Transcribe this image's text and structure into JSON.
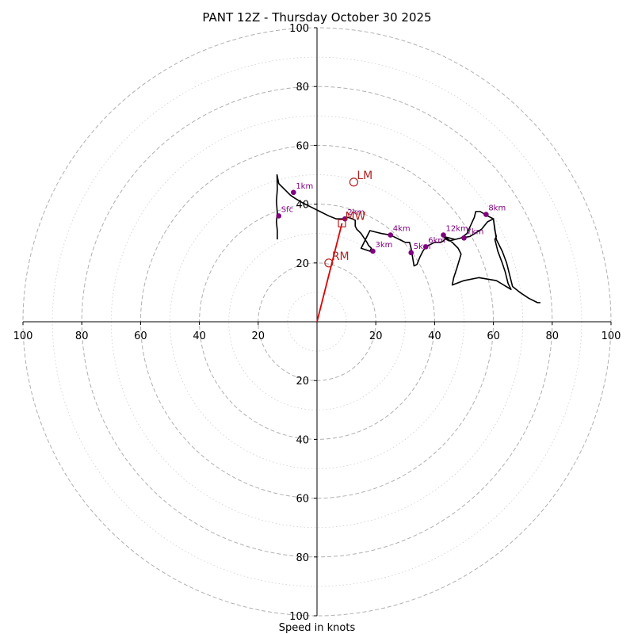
{
  "chart_data": {
    "type": "hodograph",
    "title": "PANT 12Z - Thursday October 30 2025",
    "xlabel": "Speed in knots",
    "axis_range": [
      -100,
      100
    ],
    "ring_values": [
      20,
      40,
      60,
      80,
      100
    ],
    "minor_ring_values": [
      10,
      30,
      50,
      70,
      90
    ],
    "tick_labels": [
      "100",
      "80",
      "60",
      "40",
      "20",
      "20",
      "40",
      "60",
      "80",
      "100"
    ],
    "tick_values": [
      -100,
      -80,
      -60,
      -40,
      -20,
      20,
      40,
      60,
      80,
      100
    ],
    "grid": true,
    "colors": {
      "profile": "#000000",
      "levels": "#800080",
      "storm_motion": "#b22222",
      "mean_wind_vector": "#e00000",
      "grid": "#b0b0b0"
    },
    "profile": [
      [
        -13.5,
        28
      ],
      [
        -13.5,
        31
      ],
      [
        -13.8,
        34
      ],
      [
        -13.5,
        37
      ],
      [
        -13.8,
        41
      ],
      [
        -13.5,
        45
      ],
      [
        -13.6,
        50
      ],
      [
        -13,
        47
      ],
      [
        -11,
        45
      ],
      [
        -9,
        43
      ],
      [
        -7.5,
        42
      ],
      [
        -5,
        40.5
      ],
      [
        -2,
        39
      ],
      [
        1,
        37.5
      ],
      [
        4,
        36
      ],
      [
        6.5,
        35
      ],
      [
        9,
        35
      ],
      [
        10.5,
        35.5
      ],
      [
        12,
        35
      ],
      [
        13,
        34.5
      ],
      [
        13,
        33.5
      ],
      [
        13,
        32.5
      ],
      [
        13.5,
        31.5
      ],
      [
        14,
        31
      ],
      [
        15,
        30
      ],
      [
        16,
        28.5
      ],
      [
        17,
        27
      ],
      [
        17.5,
        26
      ],
      [
        18.5,
        25
      ],
      [
        18,
        24
      ],
      [
        15,
        25
      ],
      [
        16,
        27
      ],
      [
        17,
        29
      ],
      [
        18,
        31
      ],
      [
        20,
        30.5
      ],
      [
        22,
        30
      ],
      [
        25,
        29.5
      ],
      [
        26,
        29
      ],
      [
        28,
        28
      ],
      [
        30,
        27
      ],
      [
        31.5,
        27
      ],
      [
        32,
        25
      ],
      [
        32.5,
        22
      ],
      [
        33,
        19
      ],
      [
        34,
        19.5
      ],
      [
        35,
        22
      ],
      [
        36,
        24
      ],
      [
        37,
        25.5
      ],
      [
        39,
        26.5
      ],
      [
        40,
        27
      ],
      [
        42,
        27
      ],
      [
        43,
        27.5
      ],
      [
        44,
        28.5
      ],
      [
        46,
        27
      ],
      [
        48,
        25
      ],
      [
        49,
        23
      ],
      [
        47.5,
        18
      ],
      [
        46.5,
        15
      ],
      [
        46,
        12.5
      ],
      [
        50,
        14
      ],
      [
        55,
        15
      ],
      [
        61,
        14
      ],
      [
        66,
        11
      ],
      [
        65,
        13
      ],
      [
        64,
        17
      ],
      [
        63,
        20
      ],
      [
        61.5,
        24
      ],
      [
        60.5,
        28
      ],
      [
        61,
        29
      ],
      [
        60.5,
        31
      ],
      [
        60,
        35
      ],
      [
        58,
        36
      ],
      [
        55.5,
        37.5
      ],
      [
        54,
        37.5
      ],
      [
        53.5,
        35.5
      ],
      [
        51,
        30
      ],
      [
        49,
        28.5
      ],
      [
        47,
        28
      ],
      [
        45,
        28.5
      ],
      [
        43,
        29
      ],
      [
        44,
        28
      ],
      [
        45,
        27.5
      ],
      [
        47,
        28
      ],
      [
        49,
        28.5
      ],
      [
        52,
        29
      ],
      [
        56,
        31.5
      ],
      [
        58,
        34
      ],
      [
        60,
        35
      ],
      [
        61,
        28
      ],
      [
        63,
        24
      ],
      [
        64.5,
        20
      ],
      [
        65.5,
        16
      ],
      [
        66.5,
        12
      ],
      [
        69,
        10
      ],
      [
        72,
        8
      ],
      [
        75,
        6.5
      ],
      [
        76,
        6.5
      ]
    ],
    "levels": [
      {
        "label": "Sfc",
        "x": -13,
        "y": 36
      },
      {
        "label": "1km",
        "x": -8,
        "y": 44
      },
      {
        "label": "2km",
        "x": 9.5,
        "y": 35
      },
      {
        "label": "3km",
        "x": 19,
        "y": 24
      },
      {
        "label": "4km",
        "x": 25,
        "y": 29.5
      },
      {
        "label": "5km",
        "x": 32,
        "y": 23.5
      },
      {
        "label": "6km",
        "x": 37,
        "y": 25.5
      },
      {
        "label": "7km",
        "x": 50,
        "y": 28.5
      },
      {
        "label": "8km",
        "x": 57.5,
        "y": 36.5
      },
      {
        "label": "12km",
        "x": 43,
        "y": 29.5
      }
    ],
    "storm_motions": [
      {
        "label": "LM",
        "x": 12.5,
        "y": 47.5
      },
      {
        "label": "RM",
        "x": 4,
        "y": 20
      },
      {
        "label": "MW",
        "x": 8.5,
        "y": 33.5
      }
    ],
    "mean_wind_vector": {
      "from": [
        0,
        0
      ],
      "to": [
        8.5,
        33.5
      ]
    }
  }
}
